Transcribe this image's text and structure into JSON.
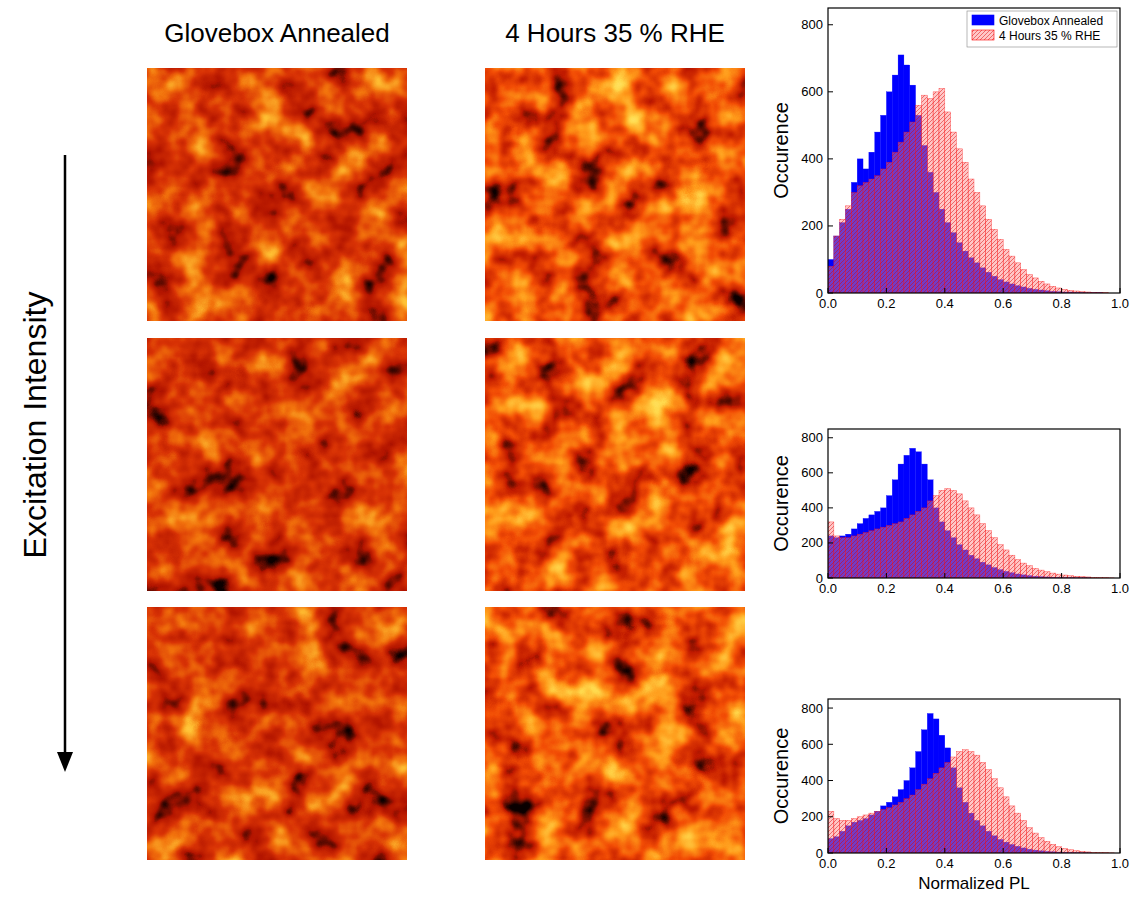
{
  "headers": [
    "Glovebox Annealed",
    "4 Hours 35 % RHE"
  ],
  "arrow_label": "Excitation Intensity",
  "chart_data": [
    {
      "type": "histogram",
      "bins": [
        0,
        0.02,
        0.04,
        0.06,
        0.08,
        0.1,
        0.12,
        0.14,
        0.16,
        0.18,
        0.2,
        0.22,
        0.24,
        0.26,
        0.28,
        0.3,
        0.32,
        0.34,
        0.36,
        0.38,
        0.4,
        0.42,
        0.44,
        0.46,
        0.48,
        0.5,
        0.52,
        0.54,
        0.56,
        0.58,
        0.6,
        0.62,
        0.64,
        0.66,
        0.68,
        0.7,
        0.72,
        0.74,
        0.76,
        0.78,
        0.8,
        0.82,
        0.84,
        0.86,
        0.88,
        0.9,
        0.92,
        0.94,
        0.96,
        0.98,
        1
      ],
      "series": [
        {
          "name": "Glovebox Annealed",
          "color": "#0000ff",
          "values": [
            100,
            170,
            210,
            250,
            330,
            400,
            370,
            420,
            480,
            530,
            600,
            650,
            710,
            680,
            620,
            530,
            440,
            360,
            300,
            250,
            210,
            180,
            150,
            125,
            105,
            90,
            75,
            62,
            50,
            40,
            33,
            27,
            22,
            18,
            14,
            11,
            9,
            7,
            5,
            4,
            3,
            3,
            2,
            2,
            1,
            1,
            1,
            0,
            0,
            0
          ]
        },
        {
          "name": "4 Hours 35 % RHE",
          "color": "#ff0000",
          "values": [
            80,
            170,
            220,
            260,
            300,
            320,
            330,
            340,
            350,
            370,
            390,
            420,
            450,
            480,
            510,
            560,
            590,
            580,
            600,
            610,
            540,
            480,
            430,
            390,
            340,
            300,
            260,
            220,
            190,
            160,
            130,
            110,
            90,
            70,
            55,
            45,
            35,
            27,
            20,
            15,
            11,
            8,
            6,
            4,
            3,
            2,
            1,
            1,
            0,
            0
          ]
        }
      ],
      "xlim": [
        0,
        1
      ],
      "xticks": [
        {
          "value": 0,
          "label": "0.0"
        },
        0.2,
        0.4,
        0.6,
        0.8,
        {
          "value": 1,
          "label": "1.0"
        }
      ],
      "ylim": [
        0,
        850
      ],
      "yticks": [
        0,
        200,
        400,
        600,
        800
      ],
      "y_label": "Occurence",
      "legend": "top-right"
    },
    {
      "type": "histogram",
      "bins": [
        0,
        0.02,
        0.04,
        0.06,
        0.08,
        0.1,
        0.12,
        0.14,
        0.16,
        0.18,
        0.2,
        0.22,
        0.24,
        0.26,
        0.28,
        0.3,
        0.32,
        0.34,
        0.36,
        0.38,
        0.4,
        0.42,
        0.44,
        0.46,
        0.48,
        0.5,
        0.52,
        0.54,
        0.56,
        0.58,
        0.6,
        0.62,
        0.64,
        0.66,
        0.68,
        0.7,
        0.72,
        0.74,
        0.76,
        0.78,
        0.8,
        0.82,
        0.84,
        0.86,
        0.88,
        0.9,
        0.92,
        0.94,
        0.96,
        0.98,
        1
      ],
      "series": [
        {
          "color": "#0000ff",
          "values": [
            240,
            230,
            240,
            250,
            280,
            310,
            340,
            360,
            380,
            400,
            470,
            560,
            650,
            700,
            740,
            720,
            650,
            560,
            400,
            320,
            270,
            230,
            190,
            160,
            130,
            110,
            90,
            75,
            60,
            48,
            38,
            30,
            23,
            18,
            14,
            10,
            8,
            6,
            4,
            3,
            2,
            2,
            1,
            1,
            1,
            0,
            0,
            0,
            0,
            0
          ]
        },
        {
          "color": "#ff0000",
          "values": [
            320,
            240,
            230,
            230,
            240,
            250,
            260,
            270,
            280,
            290,
            300,
            310,
            320,
            340,
            360,
            380,
            400,
            440,
            470,
            500,
            510,
            500,
            480,
            440,
            400,
            360,
            310,
            270,
            230,
            190,
            160,
            130,
            105,
            85,
            70,
            55,
            45,
            36,
            28,
            22,
            17,
            13,
            10,
            8,
            6,
            4,
            3,
            2,
            1,
            0
          ]
        }
      ],
      "xlim": [
        0,
        1
      ],
      "xticks": [
        {
          "value": 0,
          "label": "0.0"
        },
        0.2,
        0.4,
        0.6,
        0.8,
        {
          "value": 1,
          "label": "1.0"
        }
      ],
      "ylim": [
        0,
        850
      ],
      "yticks": [
        0,
        200,
        400,
        600,
        800
      ],
      "y_label": "Occurence"
    },
    {
      "type": "histogram",
      "bins": [
        0,
        0.02,
        0.04,
        0.06,
        0.08,
        0.1,
        0.12,
        0.14,
        0.16,
        0.18,
        0.2,
        0.22,
        0.24,
        0.26,
        0.28,
        0.3,
        0.32,
        0.34,
        0.36,
        0.38,
        0.4,
        0.42,
        0.44,
        0.46,
        0.48,
        0.5,
        0.52,
        0.54,
        0.56,
        0.58,
        0.6,
        0.62,
        0.64,
        0.66,
        0.68,
        0.7,
        0.72,
        0.74,
        0.76,
        0.78,
        0.8,
        0.82,
        0.84,
        0.86,
        0.88,
        0.9,
        0.92,
        0.94,
        0.96,
        0.98,
        1
      ],
      "series": [
        {
          "color": "#0000ff",
          "values": [
            80,
            90,
            120,
            150,
            170,
            180,
            190,
            210,
            230,
            260,
            280,
            310,
            350,
            400,
            470,
            560,
            680,
            770,
            740,
            650,
            580,
            470,
            360,
            280,
            220,
            180,
            150,
            120,
            95,
            75,
            60,
            47,
            37,
            28,
            21,
            16,
            12,
            9,
            7,
            5,
            4,
            3,
            2,
            1,
            1,
            0,
            0,
            0,
            0,
            0
          ]
        },
        {
          "color": "#ff0000",
          "values": [
            230,
            190,
            180,
            180,
            190,
            200,
            210,
            220,
            230,
            240,
            250,
            265,
            280,
            300,
            320,
            350,
            380,
            410,
            440,
            470,
            500,
            530,
            560,
            570,
            560,
            540,
            500,
            460,
            410,
            360,
            310,
            260,
            220,
            180,
            140,
            110,
            85,
            65,
            48,
            35,
            25,
            18,
            13,
            9,
            6,
            4,
            3,
            2,
            1,
            0
          ]
        }
      ],
      "xlim": [
        0,
        1
      ],
      "xticks": [
        {
          "value": 0,
          "label": "0.0"
        },
        0.2,
        0.4,
        0.6,
        0.8,
        {
          "value": 1,
          "label": "1.0"
        }
      ],
      "ylim": [
        0,
        850
      ],
      "yticks": [
        0,
        200,
        400,
        600,
        800
      ],
      "x_label": "Normalized PL",
      "y_label": "Occurence"
    }
  ]
}
